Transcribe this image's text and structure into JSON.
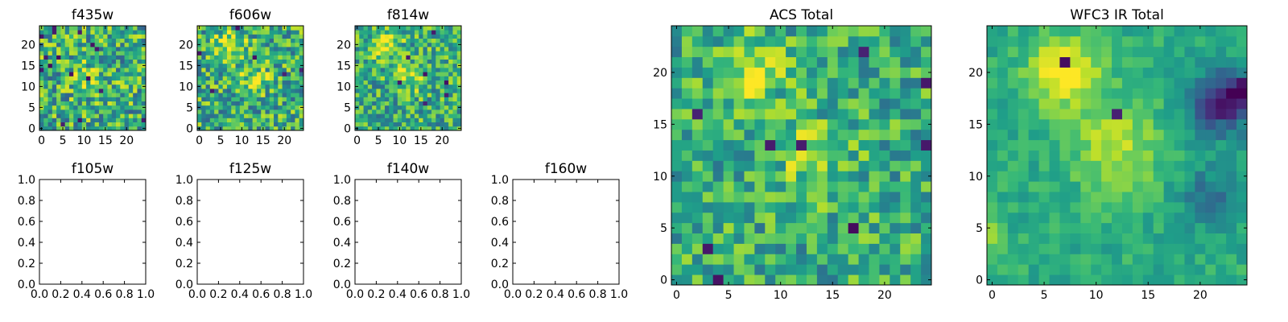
{
  "chart_data": [
    {
      "type": "heatmap",
      "title": "f435w",
      "colormap": "viridis",
      "grid": false,
      "nx": 25,
      "ny": 25,
      "xlim": [
        -0.5,
        24.5
      ],
      "ylim": [
        -0.5,
        24.5
      ],
      "x_ticks": [
        "0",
        "5",
        "10",
        "15",
        "20"
      ],
      "y_ticks": [
        "0",
        "5",
        "10",
        "15",
        "20"
      ],
      "blobs": [
        {
          "x": 11,
          "y": 12,
          "amp": 0.15,
          "sigma": 3
        }
      ],
      "noise": 0.32,
      "hot_pixels": 0,
      "cold_pixels": 16,
      "seed": 11
    },
    {
      "type": "heatmap",
      "title": "f606w",
      "colormap": "viridis",
      "grid": false,
      "nx": 25,
      "ny": 25,
      "xlim": [
        -0.5,
        24.5
      ],
      "ylim": [
        -0.5,
        24.5
      ],
      "x_ticks": [
        "0",
        "5",
        "10",
        "15",
        "20"
      ],
      "y_ticks": [
        "0",
        "5",
        "10",
        "15",
        "20"
      ],
      "blobs": [
        {
          "x": 7,
          "y": 20,
          "amp": 0.3,
          "sigma": 2.5
        },
        {
          "x": 13,
          "y": 12,
          "amp": 0.22,
          "sigma": 2.5
        }
      ],
      "noise": 0.3,
      "hot_pixels": 0,
      "cold_pixels": 6,
      "seed": 22
    },
    {
      "type": "heatmap",
      "title": "f814w",
      "colormap": "viridis",
      "grid": false,
      "nx": 25,
      "ny": 25,
      "xlim": [
        -0.5,
        24.5
      ],
      "ylim": [
        -0.5,
        24.5
      ],
      "x_ticks": [
        "0",
        "5",
        "10",
        "15",
        "20"
      ],
      "y_ticks": [
        "0",
        "5",
        "10",
        "15",
        "20"
      ],
      "blobs": [
        {
          "x": 7,
          "y": 20,
          "amp": 0.4,
          "sigma": 2.2
        },
        {
          "x": 12,
          "y": 12,
          "amp": 0.25,
          "sigma": 2.5
        }
      ],
      "noise": 0.28,
      "hot_pixels": 0,
      "cold_pixels": 7,
      "seed": 33
    },
    {
      "type": "empty",
      "hidden": true
    },
    {
      "type": "empty",
      "title": "f105w",
      "xlim": [
        0,
        1
      ],
      "ylim": [
        0,
        1
      ],
      "x_ticks": [
        "0.0",
        "0.2",
        "0.4",
        "0.6",
        "0.8",
        "1.0"
      ],
      "y_ticks": [
        "0.0",
        "0.2",
        "0.4",
        "0.6",
        "0.8",
        "1.0"
      ]
    },
    {
      "type": "empty",
      "title": "f125w",
      "xlim": [
        0,
        1
      ],
      "ylim": [
        0,
        1
      ],
      "x_ticks": [
        "0.0",
        "0.2",
        "0.4",
        "0.6",
        "0.8",
        "1.0"
      ],
      "y_ticks": [
        "0.0",
        "0.2",
        "0.4",
        "0.6",
        "0.8",
        "1.0"
      ]
    },
    {
      "type": "empty",
      "title": "f140w",
      "xlim": [
        0,
        1
      ],
      "ylim": [
        0,
        1
      ],
      "x_ticks": [
        "0.0",
        "0.2",
        "0.4",
        "0.6",
        "0.8",
        "1.0"
      ],
      "y_ticks": [
        "0.0",
        "0.2",
        "0.4",
        "0.6",
        "0.8",
        "1.0"
      ]
    },
    {
      "type": "empty",
      "title": "f160w",
      "xlim": [
        0,
        1
      ],
      "ylim": [
        0,
        1
      ],
      "x_ticks": [
        "0.0",
        "0.2",
        "0.4",
        "0.6",
        "0.8",
        "1.0"
      ],
      "y_ticks": [
        "0.0",
        "0.2",
        "0.4",
        "0.6",
        "0.8",
        "1.0"
      ]
    },
    {
      "type": "heatmap",
      "title": "ACS Total",
      "colormap": "viridis",
      "grid": false,
      "nx": 25,
      "ny": 25,
      "xlim": [
        -0.5,
        24.5
      ],
      "ylim": [
        -0.5,
        24.5
      ],
      "x_ticks": [
        "0",
        "5",
        "10",
        "15",
        "20"
      ],
      "y_ticks": [
        "0",
        "5",
        "10",
        "15",
        "20"
      ],
      "blobs": [
        {
          "x": 7,
          "y": 20,
          "amp": 0.32,
          "sigma": 2.2
        },
        {
          "x": 13,
          "y": 12,
          "amp": 0.2,
          "sigma": 2.5
        }
      ],
      "noise": 0.24,
      "hot_pixels": 0,
      "cold_pixels": 9,
      "seed": 44
    },
    {
      "type": "heatmap",
      "title": "WFC3 IR Total",
      "colormap": "viridis",
      "grid": false,
      "nx": 25,
      "ny": 25,
      "xlim": [
        -0.5,
        24.5
      ],
      "ylim": [
        -0.5,
        24.5
      ],
      "x_ticks": [
        "0",
        "5",
        "10",
        "15",
        "20"
      ],
      "y_ticks": [
        "0",
        "5",
        "10",
        "15",
        "20"
      ],
      "blobs": [
        {
          "x": 7,
          "y": 20,
          "amp": 0.45,
          "sigma": 2.3
        },
        {
          "x": 12,
          "y": 13,
          "amp": 0.28,
          "sigma": 3
        },
        {
          "x": 0,
          "y": 4,
          "amp": 0.3,
          "sigma": 1
        },
        {
          "x": 22,
          "y": 17,
          "amp": -0.45,
          "sigma": 2.2
        },
        {
          "x": 24,
          "y": 18,
          "amp": -0.35,
          "sigma": 1.5
        },
        {
          "x": 21,
          "y": 8,
          "amp": -0.25,
          "sigma": 2
        }
      ],
      "noise": 0.1,
      "hot_pixels": 0,
      "cold_pixels": 2,
      "seed": 55
    }
  ]
}
